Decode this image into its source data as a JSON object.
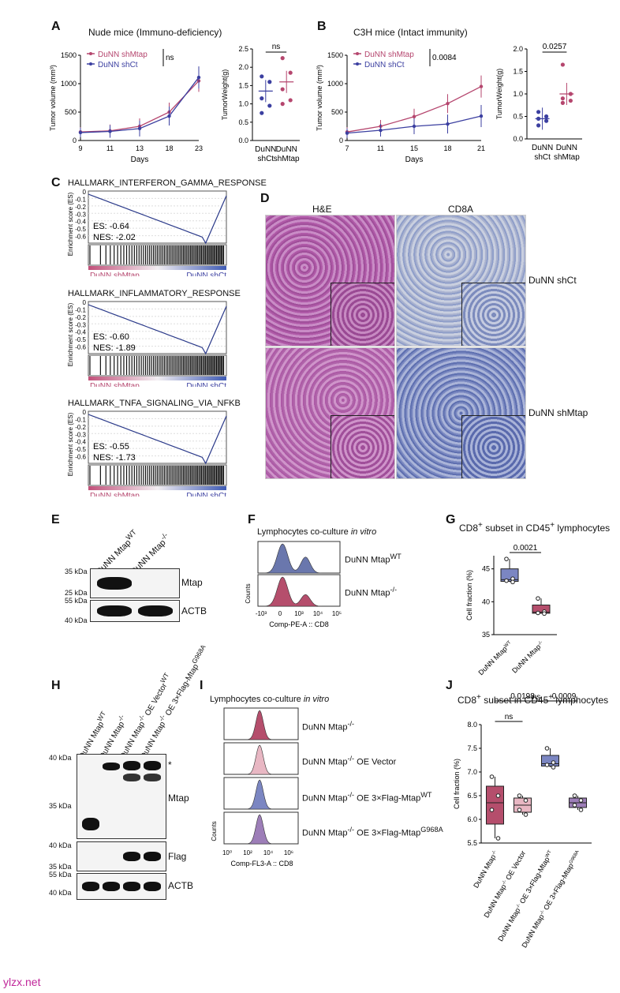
{
  "colors": {
    "shMtap": "#b5466e",
    "shCt": "#3b3fa0",
    "wt": "#6a77ad",
    "ko": "#b54e6c",
    "vector": "#e8b7c3",
    "oe_wt": "#7b86c2",
    "oe_g": "#9d7eb8"
  },
  "panels": {
    "A": "A",
    "B": "B",
    "C": "C",
    "D": "D",
    "E": "E",
    "F": "F",
    "G": "G",
    "H": "H",
    "I": "I",
    "J": "J"
  },
  "panelA": {
    "title": "Nude mice (Immuno-deficiency)",
    "ylabel": "Tumor volume (mm³)",
    "xlabel": "Days",
    "legend": [
      "DuNN shMtap",
      "DuNN shCt"
    ],
    "sig": "ns"
  },
  "panelA2": {
    "ylabel": "TumorWeight(g)",
    "sig": "ns",
    "x": [
      "DuNN\nshCt",
      "DuNN\nshMtap"
    ]
  },
  "panelB": {
    "title": "C3H mice (Intact immunity)",
    "ylabel": "Tumor volume (mm³)",
    "xlabel": "Days",
    "legend": [
      "DuNN shMtap",
      "DuNN shCt"
    ],
    "sig": "0.0084"
  },
  "panelB2": {
    "ylabel": "TumorWeight(g)",
    "sig": "0.0257"
  },
  "panelC": [
    {
      "title": "HALLMARK_INTERFERON_GAMMA_RESPONSE",
      "es": "ES: -0.64",
      "nes": "NES: -2.02"
    },
    {
      "title": "HALLMARK_INFLAMMATORY_RESPONSE",
      "es": "ES: -0.60",
      "nes": "NES: -1.89"
    },
    {
      "title": "HALLMARK_TNFA_SIGNALING_VIA_NFKB",
      "es": "ES: -0.55",
      "nes": "NES: -1.73"
    }
  ],
  "gsea_ylabel": "Enrichment score (ES)",
  "gsea_left": "DuNN shMtap",
  "gsea_right": "DuNN shCt",
  "panelD": {
    "cols": [
      "H&E",
      "CD8A"
    ],
    "rows": [
      "DuNN shCt",
      "DuNN shMtap"
    ]
  },
  "panelE": {
    "lanes": [
      "DuNN Mtap",
      "DuNN Mtap"
    ],
    "lanes_sup": [
      "WT",
      "-/-"
    ],
    "markers": [
      "35 kDa",
      "25 kDa",
      "55 kDa",
      "40 kDa"
    ],
    "labels": [
      "Mtap",
      "ACTB"
    ]
  },
  "panelF": {
    "title": "Lymphocytes co-culture ",
    "title_it": "in vitro",
    "rows": [
      "DuNN Mtap",
      "DuNN Mtap"
    ],
    "rows_sup": [
      "WT",
      "-/-"
    ],
    "ylabel": "Counts",
    "xlabel": "Comp-PE-A :: CD8",
    "ticks": [
      "-10³",
      "0",
      "10³",
      "10⁴",
      "10⁵"
    ]
  },
  "panelG": {
    "title_pre": "CD8",
    "title_mid": " subset in CD45",
    "title_post": " lymphocytes",
    "ylabel": "Cell fraction (%)",
    "sig": "0.0021",
    "x": [
      "DuNN Mtap",
      "DuNN Mtap"
    ],
    "x_sup": [
      "WT",
      "-/-"
    ]
  },
  "panelH": {
    "lanes": [
      "DuNN Mtap",
      "DuNN Mtap",
      "DuNN Mtap",
      "DuNN Mtap"
    ],
    "lanes_sup": [
      "WT",
      "-/-",
      "-/-",
      "-/-"
    ],
    "lanes_post": [
      "",
      "",
      " OE Vector",
      " OE 3×Flag-Mtap"
    ],
    "lane4_post": " OE 3×Flag-Mtap",
    "lane4_sup2": "G968A",
    "lane3_sup2": "WT",
    "markers": [
      "40 kDa",
      "35 kDa",
      "40 kDa",
      "35 kDa",
      "55 kDa",
      "40 kDa"
    ],
    "labels": [
      "Mtap",
      "Flag",
      "ACTB"
    ],
    "star": "*"
  },
  "panelI": {
    "title": "Lymphocytes co-culture ",
    "title_it": "in vitro",
    "ylabel": "Counts",
    "xlabel": "Comp-FL3-A :: CD8",
    "ticks": [
      "10⁰",
      "10²",
      "10⁴",
      "10⁶"
    ]
  },
  "panelJ": {
    "ylabel": "Cell fraction (%)",
    "sigs": [
      "ns",
      "0.0198",
      "0.0009",
      "ns"
    ]
  },
  "watermark": "ylzx.net",
  "chart_data": [
    {
      "type": "line",
      "panel": "A",
      "title": "Nude mice (Immuno-deficiency)",
      "xlabel": "Days",
      "ylabel": "Tumor volume (mm³)",
      "x": [
        9,
        11,
        13,
        18,
        23
      ],
      "ylim": [
        0,
        1500
      ],
      "series": [
        {
          "name": "DuNN shMtap",
          "values": [
            150,
            170,
            250,
            500,
            1050
          ]
        },
        {
          "name": "DuNN shCt",
          "values": [
            140,
            160,
            210,
            430,
            1110
          ]
        }
      ]
    },
    {
      "type": "scatter",
      "panel": "A-right",
      "ylabel": "TumorWeight(g)",
      "categories": [
        "DuNN shCt",
        "DuNN shMtap"
      ],
      "ylim": [
        0,
        2.5
      ],
      "points": [
        [
          1.75,
          1.6,
          1.15,
          0.95,
          0.75
        ],
        [
          2.25,
          1.85,
          1.4,
          1.1,
          1.0
        ]
      ],
      "means": [
        1.35,
        1.6
      ]
    },
    {
      "type": "line",
      "panel": "B",
      "title": "C3H mice (Intact immunity)",
      "xlabel": "Days",
      "ylabel": "Tumor volume (mm³)",
      "x": [
        7,
        11,
        15,
        18,
        21
      ],
      "ylim": [
        0,
        1500
      ],
      "series": [
        {
          "name": "DuNN shMtap",
          "values": [
            150,
            250,
            420,
            650,
            950
          ]
        },
        {
          "name": "DuNN shCt",
          "values": [
            130,
            180,
            250,
            290,
            430
          ]
        }
      ]
    },
    {
      "type": "scatter",
      "panel": "B-right",
      "ylabel": "TumorWeight(g)",
      "categories": [
        "DuNN shCt",
        "DuNN shMtap"
      ],
      "ylim": [
        0,
        2.0
      ],
      "points": [
        [
          0.6,
          0.5,
          0.45,
          0.4,
          0.3
        ],
        [
          1.65,
          1.0,
          0.9,
          0.85,
          0.8
        ]
      ],
      "means": [
        0.45,
        1.0
      ]
    },
    {
      "type": "box",
      "panel": "G",
      "ylabel": "Cell fraction (%)",
      "ylim": [
        35,
        47
      ],
      "categories": [
        "DuNN Mtap WT",
        "DuNN Mtap -/-"
      ],
      "points": [
        [
          46.5,
          43.5,
          43.2,
          43.0
        ],
        [
          40.5,
          38.5,
          38.3,
          38.2
        ]
      ]
    },
    {
      "type": "box",
      "panel": "J",
      "ylabel": "Cell fraction (%)",
      "ylim": [
        5.5,
        8.0
      ],
      "categories": [
        "DuNN Mtap -/-",
        "DuNN Mtap -/- OE Vector",
        "DuNN Mtap -/- OE 3×Flag-Mtap WT",
        "DuNN Mtap -/- OE 3×Flag-Mtap G968A"
      ],
      "points": [
        [
          6.9,
          6.5,
          6.2,
          5.6
        ],
        [
          6.5,
          6.4,
          6.2,
          6.1
        ],
        [
          7.5,
          7.2,
          7.15,
          7.1
        ],
        [
          6.5,
          6.4,
          6.3,
          6.2
        ]
      ]
    }
  ]
}
